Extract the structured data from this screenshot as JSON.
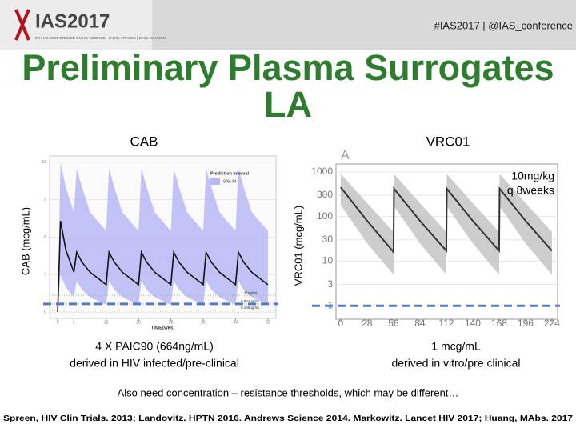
{
  "header": {
    "logo": "IAS2017",
    "logo_sub": "9TH IAS CONFERENCE ON HIV SCIENCE · PARIS, FRANCE | 23-26 JULY 2017",
    "hashtag": "#IAS2017 | @IAS_conference"
  },
  "title": "Preliminary Plasma Surrogates LA",
  "chart_data": [
    {
      "type": "line",
      "title": "CAB",
      "ylabel": "CAB (mcg/mL)",
      "xlabel": "TIME(wks)",
      "legend_title": "Prediction interval",
      "xlim": [
        -2,
        54
      ],
      "xticks": [
        0,
        4,
        12,
        20,
        28,
        36,
        44,
        52
      ],
      "ylim": [
        -0.5,
        12.5
      ],
      "yticks": [
        0,
        3,
        6,
        9,
        12
      ],
      "x": [
        0,
        0.7,
        2,
        4,
        4.7,
        6,
        8,
        12,
        12.7,
        14,
        16,
        20,
        20.7,
        22,
        24,
        28,
        28.7,
        30,
        32,
        36,
        36.7,
        38,
        40,
        44,
        44.7,
        46,
        48,
        52
      ],
      "median": {
        "color": "#111111",
        "values": [
          0,
          7.3,
          5,
          3.2,
          4.8,
          4,
          3.2,
          2.2,
          4.8,
          4,
          3.2,
          2.2,
          4.8,
          4,
          3.2,
          2.2,
          4.8,
          4,
          3.2,
          2.2,
          4.8,
          4,
          3.2,
          2.2,
          4.8,
          4,
          3.2,
          2.2
        ]
      },
      "band": {
        "name": "90% PI",
        "color": "#b7b7f5",
        "upper": [
          0,
          12,
          10,
          8,
          11.5,
          10,
          8,
          6.5,
          11.5,
          10,
          8,
          6.5,
          11.5,
          10,
          8,
          6.5,
          11.5,
          10,
          8,
          6.5,
          11.5,
          10,
          8,
          6.5,
          11.5,
          10,
          8,
          6.5
        ],
        "lower": [
          0,
          3,
          2,
          1.2,
          2.5,
          1.8,
          1.2,
          0.6,
          2.5,
          1.8,
          1.2,
          0.6,
          2.5,
          1.8,
          1.2,
          0.6,
          2.5,
          1.8,
          1.2,
          0.6,
          2.5,
          1.8,
          1.2,
          0.6,
          2.5,
          1.8,
          1.2,
          0.6
        ]
      },
      "thresholds": [
        {
          "value": 1.35,
          "label": "1.35µg/mL"
        },
        {
          "value": 0.664,
          "label": "0.664µg/mL"
        },
        {
          "value": 0.166,
          "label": "0.166µg/mL"
        }
      ],
      "target": {
        "value": 0.664,
        "color": "#4f7fbf"
      },
      "caption": [
        "4 X PAIC90 (664ng/mL)",
        "derived in HIV infected/pre-clinical"
      ]
    },
    {
      "type": "line",
      "title": "VRC01",
      "panel": "A",
      "ylabel": "VRC01 (mcg/mL)",
      "log_y": true,
      "annotation": [
        "10mg/kg",
        "q 8weeks"
      ],
      "xlim": [
        -5,
        230
      ],
      "xticks": [
        0,
        28,
        56,
        84,
        112,
        140,
        168,
        196,
        224
      ],
      "ylim": [
        0.5,
        1500
      ],
      "yticks": [
        1,
        3,
        10,
        30,
        100,
        300,
        1000
      ],
      "x": [
        0,
        28,
        56,
        56.5,
        84,
        112,
        112.5,
        140,
        168,
        168.5,
        196,
        224
      ],
      "median": {
        "color": "#333333",
        "values": [
          450,
          80,
          16,
          420,
          80,
          17,
          420,
          80,
          17,
          420,
          80,
          17
        ]
      },
      "band": {
        "color": "#c4c4c4",
        "upper": [
          900,
          200,
          45,
          900,
          200,
          45,
          900,
          200,
          45,
          900,
          200,
          45
        ],
        "lower": [
          180,
          25,
          5,
          170,
          25,
          5,
          170,
          25,
          5,
          170,
          25,
          5
        ]
      },
      "target": {
        "value": 1,
        "color": "#4f7fbf"
      },
      "caption": [
        "1 mcg/mL",
        "derived in vitro/pre clinical"
      ]
    }
  ],
  "note": "Also need concentration – resistance thresholds, which may be different…",
  "references": "Spreen, HIV Clin Trials. 2013; Landovitz. HPTN 2016. Andrews Science 2014. Markowitz. Lancet HIV 2017; Huang, MAbs. 2017"
}
